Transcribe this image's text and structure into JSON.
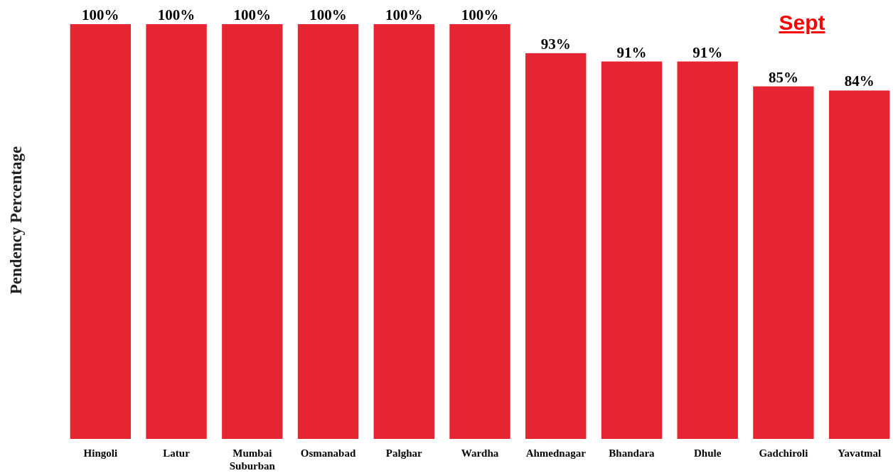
{
  "chart_data": {
    "type": "bar",
    "title": "Sept",
    "ylabel": "Pendency Percentage",
    "categories": [
      "Hingoli",
      "Latur",
      "Mumbai Suburban",
      "Osmanabad",
      "Palghar",
      "Wardha",
      "Ahmednagar",
      "Bhandara",
      "Dhule",
      "Gadchiroli",
      "Yavatmal"
    ],
    "values": [
      100,
      100,
      100,
      100,
      100,
      100,
      93,
      91,
      91,
      85,
      84
    ],
    "value_labels": [
      "100%",
      "100%",
      "100%",
      "100%",
      "100%",
      "100%",
      "93%",
      "91%",
      "91%",
      "85%",
      "84%"
    ],
    "color": "#e52532"
  }
}
